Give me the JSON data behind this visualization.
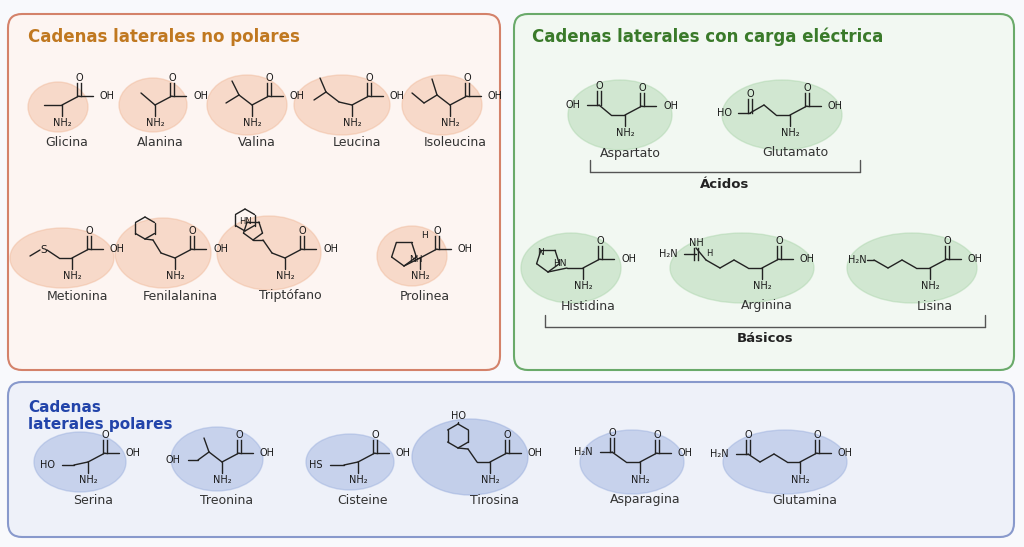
{
  "bg_color": "#f8f9fc",
  "box1_facecolor": "#fdf5f2",
  "box1_border": "#d4826a",
  "box1_title": "Cadenas laterales no polares",
  "box1_title_color": "#c07820",
  "box2_facecolor": "#f2f8f2",
  "box2_border": "#6aaa6a",
  "box2_title": "Cadenas laterales con carga eléctrica",
  "box2_title_color": "#3a7a2a",
  "box3_facecolor": "#eef1f9",
  "box3_border": "#8899cc",
  "box3_title": "Cadenas\nlaterales polares",
  "box3_title_color": "#2244aa",
  "highlight_nonpolar": "#f0b898",
  "highlight_electric": "#aad4aa",
  "highlight_polar": "#99aedd",
  "label_color": "#333333",
  "acidos_label": "Ácidos",
  "basicos_label": "Básicos",
  "row1_labels": [
    "Glicina",
    "Alanina",
    "Valina",
    "Leucina",
    "Isoleucina"
  ],
  "row2_labels": [
    "Metionina",
    "Fenilalanina",
    "Triptófano",
    "Prolinea"
  ],
  "acid_labels": [
    "Aspartato",
    "Glutamato"
  ],
  "basic_labels": [
    "Histidina",
    "Arginina",
    "Lisina"
  ],
  "polar_labels": [
    "Serina",
    "Treonina",
    "Cisteine",
    "Tirosina",
    "Asparagina",
    "Glutamina"
  ]
}
